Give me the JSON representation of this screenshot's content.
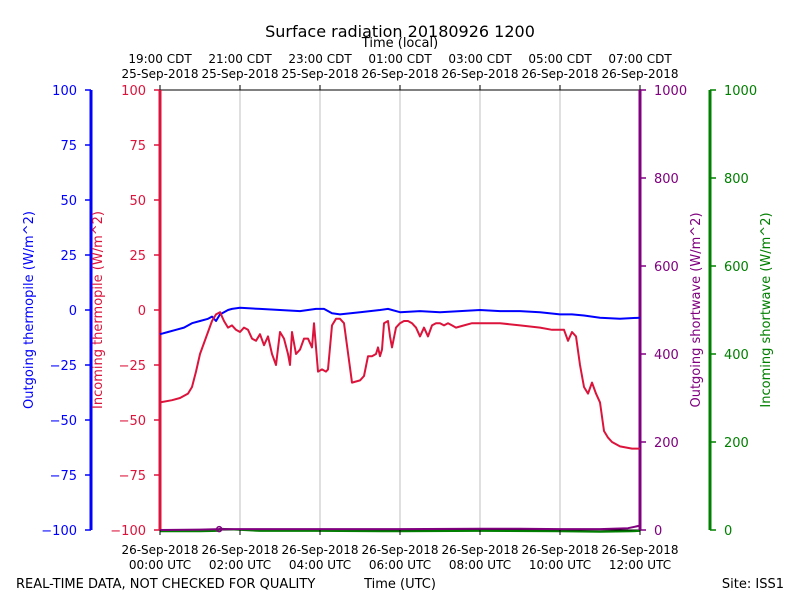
{
  "chart_data": {
    "type": "line",
    "title": "Surface radiation 20180926 1200",
    "top_axis_label": "Time (local)",
    "xlabel": "Time (UTC)",
    "footer_left": "REAL-TIME DATA, NOT CHECKED FOR QUALITY",
    "footer_right": "Site: ISS1",
    "x_range_hours": [
      0,
      12
    ],
    "bottom_ticks": [
      {
        "hour": 0,
        "line1": "26-Sep-2018",
        "line2": "00:00 UTC"
      },
      {
        "hour": 2,
        "line1": "26-Sep-2018",
        "line2": "02:00 UTC"
      },
      {
        "hour": 4,
        "line1": "26-Sep-2018",
        "line2": "04:00 UTC"
      },
      {
        "hour": 6,
        "line1": "26-Sep-2018",
        "line2": "06:00 UTC"
      },
      {
        "hour": 8,
        "line1": "26-Sep-2018",
        "line2": "08:00 UTC"
      },
      {
        "hour": 10,
        "line1": "26-Sep-2018",
        "line2": "10:00 UTC"
      },
      {
        "hour": 12,
        "line1": "26-Sep-2018",
        "line2": "12:00 UTC"
      }
    ],
    "top_ticks": [
      {
        "hour": 0,
        "line1": "19:00 CDT",
        "line2": "25-Sep-2018"
      },
      {
        "hour": 2,
        "line1": "21:00 CDT",
        "line2": "25-Sep-2018"
      },
      {
        "hour": 4,
        "line1": "23:00 CDT",
        "line2": "25-Sep-2018"
      },
      {
        "hour": 6,
        "line1": "01:00 CDT",
        "line2": "26-Sep-2018"
      },
      {
        "hour": 8,
        "line1": "03:00 CDT",
        "line2": "26-Sep-2018"
      },
      {
        "hour": 10,
        "line1": "05:00 CDT",
        "line2": "26-Sep-2018"
      },
      {
        "hour": 12,
        "line1": "07:00 CDT",
        "line2": "26-Sep-2018"
      }
    ],
    "axes": [
      {
        "id": "outgoing-thermopile",
        "label": "Outgoing thermopile (W/m^2)",
        "color": "#0000ff",
        "side": "left-outer",
        "ylim": [
          -100,
          100
        ],
        "ticks": [
          {
            "v": 100,
            "t": "100"
          },
          {
            "v": 75,
            "t": "75"
          },
          {
            "v": 50,
            "t": "50"
          },
          {
            "v": 25,
            "t": "25"
          },
          {
            "v": 0,
            "t": "0"
          },
          {
            "v": -25,
            "t": "−25"
          },
          {
            "v": -50,
            "t": "−50"
          },
          {
            "v": -75,
            "t": "−75"
          },
          {
            "v": -100,
            "t": "−100"
          }
        ]
      },
      {
        "id": "incoming-thermopile",
        "label": "Incoming thermopile (W/m^2)",
        "color": "#dc143c",
        "side": "left-inner",
        "ylim": [
          -100,
          100
        ],
        "ticks": [
          {
            "v": 100,
            "t": "100"
          },
          {
            "v": 75,
            "t": "75"
          },
          {
            "v": 50,
            "t": "50"
          },
          {
            "v": 25,
            "t": "25"
          },
          {
            "v": 0,
            "t": "0"
          },
          {
            "v": -25,
            "t": "−25"
          },
          {
            "v": -50,
            "t": "−50"
          },
          {
            "v": -75,
            "t": "−75"
          },
          {
            "v": -100,
            "t": "−100"
          }
        ]
      },
      {
        "id": "outgoing-shortwave",
        "label": "Outgoing shortwave (W/m^2)",
        "color": "#800080",
        "side": "right-inner",
        "ylim": [
          0,
          1000
        ],
        "ticks": [
          {
            "v": 1000,
            "t": "1000"
          },
          {
            "v": 800,
            "t": "800"
          },
          {
            "v": 600,
            "t": "600"
          },
          {
            "v": 400,
            "t": "400"
          },
          {
            "v": 200,
            "t": "200"
          },
          {
            "v": 0,
            "t": "0"
          }
        ]
      },
      {
        "id": "incoming-shortwave",
        "label": "Incoming shortwave (W/m^2)",
        "color": "#008000",
        "side": "right-outer",
        "ylim": [
          0,
          1000
        ],
        "ticks": [
          {
            "v": 1000,
            "t": "1000"
          },
          {
            "v": 800,
            "t": "800"
          },
          {
            "v": 600,
            "t": "600"
          },
          {
            "v": 400,
            "t": "400"
          },
          {
            "v": 200,
            "t": "200"
          },
          {
            "v": 0,
            "t": "0"
          }
        ]
      }
    ],
    "series": [
      {
        "name": "Incoming shortwave",
        "axis": "incoming-shortwave",
        "color": "#008000",
        "x": [
          0,
          1.0,
          1.45,
          1.5,
          2.5,
          4.0,
          6.0,
          8.0,
          10.0,
          11.0,
          11.8,
          12.0
        ],
        "y": [
          -3,
          -3,
          -2,
          3,
          -2,
          -2,
          -3,
          -2,
          -3,
          -4,
          -3,
          -2
        ]
      },
      {
        "name": "Outgoing shortwave",
        "axis": "outgoing-shortwave",
        "color": "#800080",
        "x": [
          0,
          1.0,
          1.5,
          2.0,
          4.0,
          6.0,
          8.0,
          9.0,
          10.0,
          11.0,
          11.7,
          12.0
        ],
        "y": [
          0,
          1,
          2,
          2,
          2,
          2,
          3,
          3,
          2,
          2,
          4,
          10
        ]
      },
      {
        "name": "Outgoing thermopile",
        "axis": "outgoing-thermopile",
        "color": "#0000ff",
        "x": [
          0,
          0.2,
          0.4,
          0.6,
          0.8,
          1.0,
          1.2,
          1.3,
          1.4,
          1.5,
          1.6,
          1.7,
          1.8,
          2.0,
          2.5,
          3.0,
          3.5,
          3.9,
          4.1,
          4.3,
          4.5,
          5.0,
          5.5,
          5.7,
          6.0,
          6.5,
          7.0,
          7.5,
          8.0,
          8.5,
          9.0,
          9.5,
          10.0,
          10.3,
          10.6,
          11.0,
          11.5,
          12.0
        ],
        "y": [
          -11,
          -10,
          -9,
          -8,
          -6,
          -5,
          -4,
          -3,
          -5,
          -2,
          -1,
          0,
          0.5,
          1,
          0.5,
          0,
          -0.5,
          0.5,
          0.5,
          -1.5,
          -2,
          -1,
          0,
          0.5,
          -1,
          -0.5,
          -1,
          -0.5,
          0,
          -0.5,
          -0.5,
          -1,
          -2,
          -2,
          -2.5,
          -3.5,
          -4,
          -3.5
        ]
      },
      {
        "name": "Incoming thermopile",
        "axis": "incoming-thermopile",
        "color": "#dc143c",
        "x": [
          0,
          0.3,
          0.5,
          0.7,
          0.8,
          0.9,
          1.0,
          1.1,
          1.2,
          1.3,
          1.4,
          1.5,
          1.6,
          1.7,
          1.8,
          1.9,
          2.0,
          2.1,
          2.2,
          2.3,
          2.4,
          2.5,
          2.6,
          2.7,
          2.8,
          2.9,
          3.0,
          3.1,
          3.2,
          3.25,
          3.3,
          3.4,
          3.5,
          3.6,
          3.7,
          3.8,
          3.85,
          3.95,
          4.05,
          4.15,
          4.2,
          4.3,
          4.4,
          4.5,
          4.6,
          4.8,
          5.0,
          5.1,
          5.2,
          5.3,
          5.4,
          5.45,
          5.5,
          5.55,
          5.6,
          5.7,
          5.75,
          5.8,
          5.9,
          6.0,
          6.1,
          6.2,
          6.3,
          6.35,
          6.4,
          6.5,
          6.6,
          6.7,
          6.8,
          6.9,
          7.0,
          7.1,
          7.2,
          7.3,
          7.4,
          7.6,
          7.8,
          8.0,
          8.5,
          9.0,
          9.5,
          9.8,
          10.0,
          10.1,
          10.2,
          10.3,
          10.4,
          10.5,
          10.6,
          10.7,
          10.8,
          10.9,
          11.0,
          11.1,
          11.2,
          11.3,
          11.5,
          11.8,
          12.0
        ],
        "y": [
          -42,
          -41,
          -40,
          -38,
          -35,
          -28,
          -20,
          -15,
          -10,
          -5,
          -2,
          -1,
          -5,
          -8,
          -7,
          -9,
          -10,
          -8,
          -9,
          -13,
          -14,
          -11,
          -16,
          -12,
          -20,
          -25,
          -10,
          -13,
          -20,
          -25,
          -10,
          -20,
          -18,
          -13,
          -13,
          -17,
          -6,
          -28,
          -27,
          -28,
          -27,
          -7,
          -4,
          -4,
          -6,
          -33,
          -32,
          -30,
          -21,
          -21,
          -20,
          -17,
          -21,
          -18,
          -6,
          -5,
          -12,
          -17,
          -8,
          -6,
          -5,
          -5,
          -6,
          -7,
          -8,
          -12,
          -8,
          -12,
          -7,
          -6,
          -6,
          -7,
          -6,
          -7,
          -8,
          -7,
          -6,
          -6,
          -6,
          -7,
          -8,
          -9,
          -9,
          -9,
          -14,
          -10,
          -12,
          -25,
          -35,
          -38,
          -33,
          -38,
          -42,
          -55,
          -58,
          -60,
          -62,
          -63,
          -63
        ]
      }
    ]
  }
}
